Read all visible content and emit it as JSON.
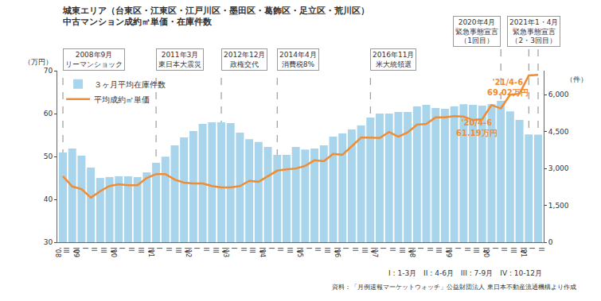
{
  "chart_data": {
    "type": "combo",
    "title": "城東エリア（台東区・江東区・江戸川区・墨田区・葛飾区・足立区・荒川区）",
    "subtitle": "中古マンション成約㎡単価・在庫件数",
    "ylabel": "（万円）",
    "y2label": "（件）",
    "categories": [
      "III",
      "IV",
      "I",
      "II",
      "III",
      "IV",
      "I",
      "II",
      "III",
      "IV",
      "I",
      "II",
      "III",
      "IV",
      "I",
      "II",
      "III",
      "IV",
      "I",
      "II",
      "III",
      "IV",
      "I",
      "II",
      "III",
      "IV",
      "I",
      "II",
      "III",
      "IV",
      "I",
      "II",
      "III",
      "IV",
      "I",
      "II",
      "III",
      "IV",
      "I",
      "II",
      "III",
      "IV",
      "I",
      "II",
      "III",
      "IV",
      "I",
      "II",
      "III",
      "IV",
      "I",
      "II"
    ],
    "year_labels": [
      "'08",
      null,
      "'09",
      null,
      null,
      null,
      "'10",
      null,
      null,
      null,
      "'11",
      null,
      null,
      null,
      "'12",
      null,
      null,
      null,
      "'13",
      null,
      null,
      null,
      "'14",
      null,
      null,
      null,
      "'15",
      null,
      null,
      null,
      "'16",
      null,
      null,
      null,
      "'17",
      null,
      null,
      null,
      "'18",
      null,
      null,
      null,
      "'19",
      null,
      null,
      null,
      "'20",
      null,
      null,
      null,
      "'21",
      null
    ],
    "series": [
      {
        "name": "３ヶ月平均在庫件数",
        "type": "bar",
        "axis": "y2",
        "color": "#a9d5ec",
        "values": [
          3650,
          3810,
          3520,
          3030,
          2610,
          2650,
          2680,
          2680,
          2650,
          2840,
          3230,
          3480,
          3940,
          4260,
          4520,
          4810,
          4870,
          4870,
          4840,
          4450,
          4190,
          4070,
          3870,
          3550,
          3550,
          3870,
          3770,
          3810,
          3940,
          4290,
          4420,
          4580,
          4740,
          5070,
          5230,
          5230,
          5290,
          5290,
          5520,
          5580,
          5450,
          5420,
          5520,
          5610,
          5580,
          5550,
          5610,
          5740,
          5320,
          4970,
          4380,
          4370
        ]
      },
      {
        "name": "平均成約㎡単価",
        "type": "line",
        "color": "#f08c32",
        "values": [
          45.4,
          43.0,
          42.4,
          40.4,
          41.9,
          43.1,
          43.5,
          43.3,
          43.3,
          45.0,
          45.9,
          45.9,
          44.6,
          43.9,
          43.7,
          43.7,
          43.1,
          42.8,
          42.8,
          43.1,
          44.3,
          44.1,
          45.4,
          46.7,
          47.0,
          47.2,
          47.8,
          49.1,
          48.9,
          50.6,
          50.4,
          52.4,
          54.4,
          54.4,
          54.3,
          55.7,
          54.6,
          55.6,
          57.4,
          57.6,
          59.1,
          59.1,
          59.4,
          59.3,
          58.5,
          58.7,
          62.0,
          61.19,
          64.4,
          64.6,
          68.9,
          69.02
        ]
      }
    ],
    "ylim": [
      30,
      70
    ],
    "yticks": [
      30,
      40,
      50,
      60,
      70
    ],
    "y2lim": [
      0,
      6970
    ],
    "y2ticks": [
      0,
      {
        "value": 1500,
        "label": "1,500"
      },
      {
        "value": 3000,
        "label": "3,000"
      },
      {
        "value": 4500,
        "label": "4,500"
      },
      {
        "value": 6000,
        "label": "6,000"
      }
    ],
    "grid": false,
    "legend": "upper left",
    "events": [
      {
        "at": [
          0
        ],
        "text": [
          "2008年9月",
          "リーマンショック"
        ]
      },
      {
        "at": [
          10
        ],
        "text": [
          "2011年3月",
          "東日本大震災"
        ]
      },
      {
        "at": [
          17
        ],
        "text": [
          "2012年12月",
          "政権交代"
        ]
      },
      {
        "at": [
          23
        ],
        "text": [
          "2014年4月",
          "消費税8%"
        ]
      },
      {
        "at": [
          33
        ],
        "text": [
          "2016年11月",
          "米大統領選"
        ]
      },
      {
        "at": [
          47
        ],
        "text": [
          "2020年4月",
          "緊急事態宣言",
          "（1回目）"
        ]
      },
      {
        "at": [
          50,
          51
        ],
        "text": [
          "2021年1・4月",
          "緊急事態宣言",
          "（2・3回目）"
        ]
      }
    ],
    "annotations": [
      {
        "at": 47,
        "value": 61.19,
        "text": [
          "'20/4-6",
          "61.19万円"
        ]
      },
      {
        "at": 51,
        "value": 69.02,
        "text": [
          "'21/4-6",
          "69.02万円"
        ]
      }
    ],
    "notes": [
      "I : 1-3月　II : 4-6月　III : 7-9月　IV : 10-12月",
      "資料：「月例速報マーケットウォッチ」公益財団法人 東日本不動産流通機構より作成"
    ]
  }
}
